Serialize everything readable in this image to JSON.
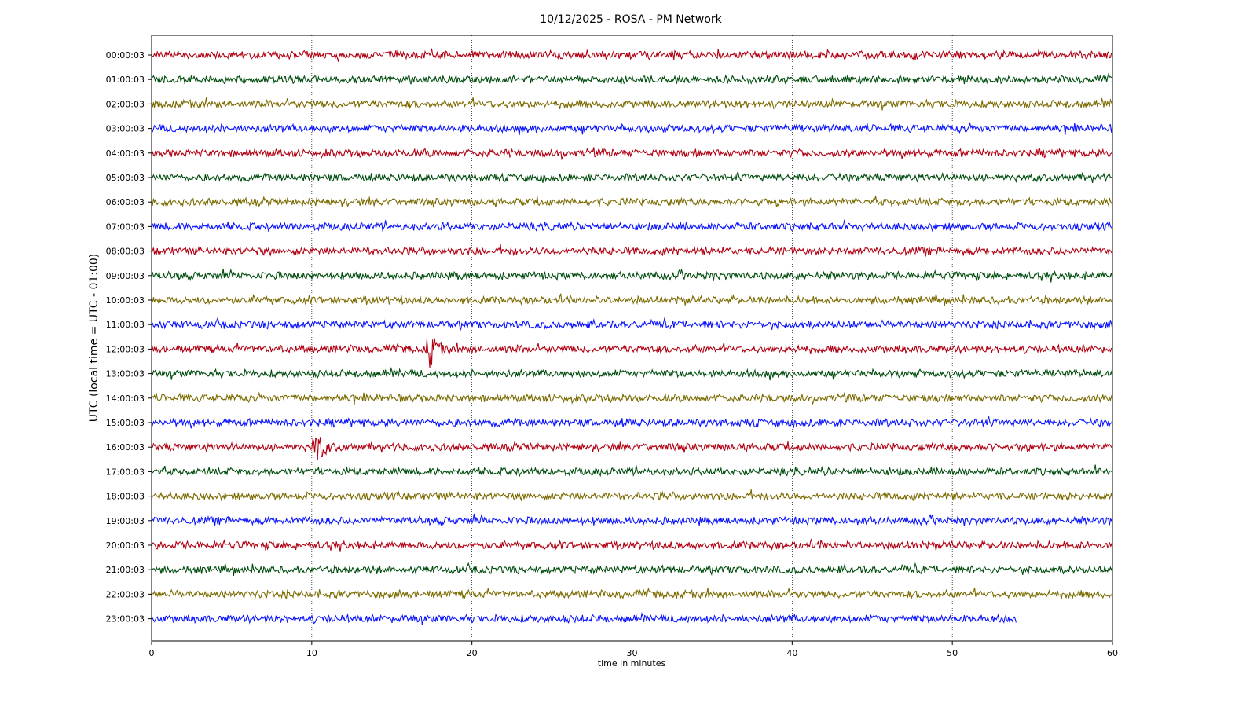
{
  "chart_data": {
    "type": "line",
    "title": "10/12/2025 - ROSA - PM Network",
    "xlabel": "time in minutes",
    "ylabel": "UTC (local time = UTC - 01:00)",
    "xlim": [
      0,
      60
    ],
    "x_ticks": [
      "0",
      "10",
      "20",
      "30",
      "40",
      "50",
      "60"
    ],
    "grid": "vertical dotted at 10-minute ticks",
    "trace_colors": [
      "#b00012",
      "#004d0e",
      "#7a6a00",
      "#0a14ff"
    ],
    "rows": [
      {
        "label": "00:00:03",
        "end_minute": 60
      },
      {
        "label": "01:00:03",
        "end_minute": 60
      },
      {
        "label": "02:00:03",
        "end_minute": 60
      },
      {
        "label": "03:00:03",
        "end_minute": 60
      },
      {
        "label": "04:00:03",
        "end_minute": 60
      },
      {
        "label": "05:00:03",
        "end_minute": 60
      },
      {
        "label": "06:00:03",
        "end_minute": 60
      },
      {
        "label": "07:00:03",
        "end_minute": 60
      },
      {
        "label": "08:00:03",
        "end_minute": 60
      },
      {
        "label": "09:00:03",
        "end_minute": 60
      },
      {
        "label": "10:00:03",
        "end_minute": 60
      },
      {
        "label": "11:00:03",
        "end_minute": 60
      },
      {
        "label": "12:00:03",
        "end_minute": 60
      },
      {
        "label": "13:00:03",
        "end_minute": 60
      },
      {
        "label": "14:00:03",
        "end_minute": 60
      },
      {
        "label": "15:00:03",
        "end_minute": 60
      },
      {
        "label": "16:00:03",
        "end_minute": 60
      },
      {
        "label": "17:00:03",
        "end_minute": 60
      },
      {
        "label": "18:00:03",
        "end_minute": 60
      },
      {
        "label": "19:00:03",
        "end_minute": 60
      },
      {
        "label": "20:00:03",
        "end_minute": 60
      },
      {
        "label": "21:00:03",
        "end_minute": 60
      },
      {
        "label": "22:00:03",
        "end_minute": 60
      },
      {
        "label": "23:00:03",
        "end_minute": 54
      }
    ],
    "events": [
      {
        "row": 12,
        "minute": 17.3
      },
      {
        "row": 16,
        "minute": 10.2
      }
    ]
  }
}
